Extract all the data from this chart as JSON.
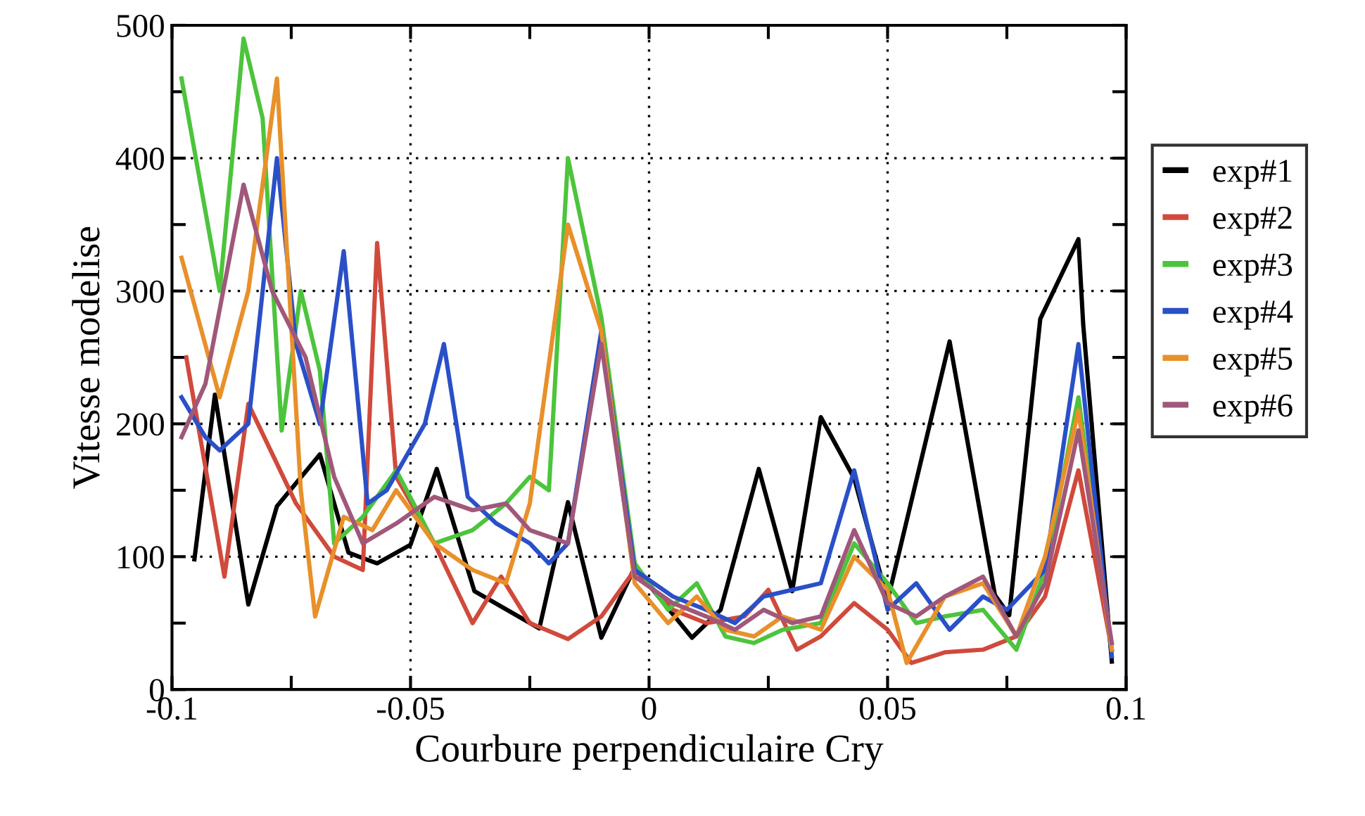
{
  "chart_data": {
    "type": "line",
    "xlabel": "Courbure perpendiculaire Cry",
    "ylabel": "Vitesse modelise",
    "xlim": [
      -0.1,
      0.1
    ],
    "ylim": [
      0,
      500
    ],
    "xticks": [
      -0.1,
      {
        "value": -0.075,
        "label": null
      },
      -0.05,
      {
        "value": -0.025,
        "label": null
      },
      0,
      {
        "value": 0.025,
        "label": null
      },
      0.05,
      {
        "value": 0.075,
        "label": null
      },
      0.1
    ],
    "yticks": [
      0,
      {
        "value": 50,
        "label": null
      },
      100,
      {
        "value": 150,
        "label": null
      },
      200,
      {
        "value": 250,
        "label": null
      },
      300,
      {
        "value": 350,
        "label": null
      },
      400,
      {
        "value": 450,
        "label": null
      },
      500
    ],
    "grid": true,
    "legend": "right",
    "line_style": "solid",
    "series": [
      {
        "name": "exp#1",
        "color": "#000000",
        "x": [
          -0.0953,
          -0.091,
          -0.084,
          -0.078,
          -0.069,
          -0.063,
          -0.057,
          -0.05,
          -0.0445,
          -0.0366,
          -0.023,
          -0.017,
          -0.01,
          -0.003,
          0.009,
          0.015,
          0.023,
          0.03,
          0.036,
          0.043,
          0.05,
          0.063,
          0.0725,
          0.0755,
          0.082,
          0.09,
          0.091,
          0.097
        ],
        "values": [
          98,
          222,
          64,
          138,
          177,
          103,
          95,
          109,
          166,
          74,
          46,
          141,
          39,
          92,
          39,
          60,
          166,
          74,
          205,
          159,
          67,
          262,
          71,
          56,
          279,
          339,
          275,
          21
        ]
      },
      {
        "name": "exp#2",
        "color": "#d04a3c",
        "x": [
          -0.097,
          -0.089,
          -0.084,
          -0.074,
          -0.066,
          -0.06,
          -0.057,
          -0.053,
          -0.045,
          -0.037,
          -0.031,
          -0.025,
          -0.017,
          -0.01,
          -0.003,
          0.005,
          0.012,
          0.02,
          0.025,
          0.031,
          0.036,
          0.043,
          0.05,
          0.055,
          0.062,
          0.07,
          0.077,
          0.083,
          0.09,
          0.097
        ],
        "values": [
          250,
          85,
          215,
          140,
          100,
          90,
          336,
          160,
          110,
          50,
          85,
          50,
          38,
          55,
          90,
          60,
          50,
          55,
          75,
          30,
          40,
          65,
          45,
          20,
          28,
          30,
          40,
          70,
          165,
          30
        ]
      },
      {
        "name": "exp#3",
        "color": "#4cc43c",
        "x": [
          -0.098,
          -0.09,
          -0.085,
          -0.081,
          -0.077,
          -0.073,
          -0.069,
          -0.066,
          -0.06,
          -0.053,
          -0.045,
          -0.037,
          -0.03,
          -0.025,
          -0.021,
          -0.017,
          -0.01,
          -0.003,
          0.004,
          0.01,
          0.016,
          0.022,
          0.028,
          0.036,
          0.043,
          0.05,
          0.056,
          0.062,
          0.07,
          0.077,
          0.083,
          0.09,
          0.097
        ],
        "values": [
          460,
          300,
          490,
          430,
          195,
          300,
          240,
          110,
          130,
          165,
          110,
          120,
          140,
          160,
          150,
          400,
          280,
          95,
          60,
          80,
          40,
          35,
          45,
          50,
          110,
          80,
          50,
          55,
          60,
          30,
          90,
          220,
          30
        ]
      },
      {
        "name": "exp#4",
        "color": "#2a50c8",
        "x": [
          -0.098,
          -0.093,
          -0.09,
          -0.084,
          -0.078,
          -0.074,
          -0.069,
          -0.064,
          -0.059,
          -0.055,
          -0.047,
          -0.043,
          -0.038,
          -0.032,
          -0.025,
          -0.021,
          -0.017,
          -0.01,
          -0.003,
          0.005,
          0.012,
          0.018,
          0.024,
          0.03,
          0.036,
          0.043,
          0.05,
          0.056,
          0.063,
          0.07,
          0.075,
          0.083,
          0.09,
          0.097
        ],
        "values": [
          220,
          190,
          180,
          200,
          400,
          260,
          200,
          330,
          140,
          150,
          200,
          260,
          145,
          125,
          110,
          95,
          110,
          270,
          90,
          70,
          60,
          50,
          70,
          75,
          80,
          165,
          60,
          80,
          45,
          70,
          60,
          90,
          260,
          25
        ]
      },
      {
        "name": "exp#5",
        "color": "#e8902a",
        "x": [
          -0.098,
          -0.09,
          -0.084,
          -0.078,
          -0.073,
          -0.07,
          -0.064,
          -0.058,
          -0.053,
          -0.045,
          -0.037,
          -0.03,
          -0.025,
          -0.017,
          -0.01,
          -0.003,
          0.004,
          0.01,
          0.016,
          0.022,
          0.028,
          0.036,
          0.043,
          0.05,
          0.054,
          0.062,
          0.07,
          0.077,
          0.083,
          0.09,
          0.097
        ],
        "values": [
          325,
          220,
          300,
          460,
          150,
          55,
          130,
          120,
          150,
          110,
          90,
          80,
          140,
          350,
          270,
          80,
          50,
          70,
          45,
          40,
          55,
          45,
          100,
          75,
          20,
          70,
          80,
          40,
          100,
          210,
          30
        ]
      },
      {
        "name": "exp#6",
        "color": "#a0587a",
        "x": [
          -0.098,
          -0.093,
          -0.085,
          -0.079,
          -0.072,
          -0.066,
          -0.06,
          -0.053,
          -0.045,
          -0.037,
          -0.03,
          -0.025,
          -0.017,
          -0.01,
          -0.003,
          0.005,
          0.012,
          0.018,
          0.024,
          0.03,
          0.036,
          0.043,
          0.05,
          0.056,
          0.062,
          0.07,
          0.077,
          0.083,
          0.09,
          0.097
        ],
        "values": [
          190,
          230,
          380,
          300,
          250,
          160,
          110,
          125,
          145,
          135,
          140,
          120,
          110,
          260,
          85,
          65,
          55,
          45,
          60,
          50,
          55,
          120,
          65,
          55,
          70,
          85,
          40,
          80,
          195,
          35
        ]
      }
    ]
  }
}
